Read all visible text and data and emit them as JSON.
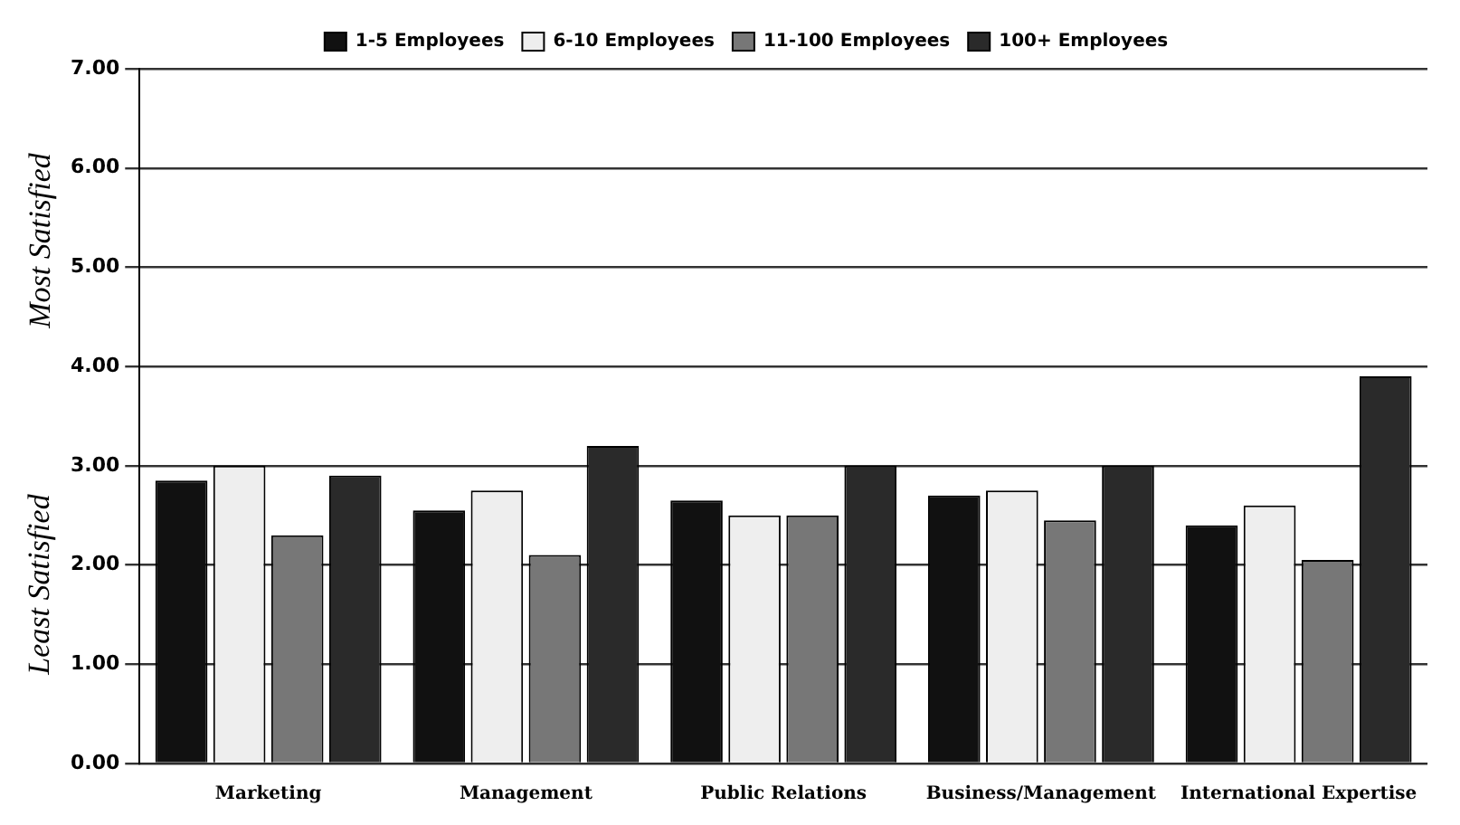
{
  "chart_data": {
    "type": "bar",
    "categories": [
      "Marketing",
      "Management",
      "Public Relations",
      "Business/Management",
      "International Expertise"
    ],
    "series": [
      {
        "name": "1-5 Employees",
        "color": "#111111",
        "values": [
          2.85,
          2.55,
          2.65,
          2.7,
          2.4
        ]
      },
      {
        "name": "6-10 Employees",
        "color": "#eeeeee",
        "values": [
          3.0,
          2.75,
          2.5,
          2.75,
          2.6
        ]
      },
      {
        "name": "11-100 Employees",
        "color": "#777777",
        "values": [
          2.3,
          2.1,
          2.5,
          2.45,
          2.05
        ]
      },
      {
        "name": "100+ Employees",
        "color": "#2a2a2a",
        "values": [
          2.9,
          3.2,
          3.0,
          3.0,
          3.9
        ]
      }
    ],
    "ylim": [
      0,
      7
    ],
    "yticks": [
      {
        "value": 0,
        "label": "0.00"
      },
      {
        "value": 1,
        "label": "1.00"
      },
      {
        "value": 2,
        "label": "2.00"
      },
      {
        "value": 3,
        "label": "3.00"
      },
      {
        "value": 4,
        "label": "4.00"
      },
      {
        "value": 5,
        "label": "5.00"
      },
      {
        "value": 6,
        "label": "6.00"
      },
      {
        "value": 7,
        "label": "7.00"
      }
    ],
    "annotations": [
      "Least Satisfied",
      "Most Satisfied"
    ],
    "grid": "y",
    "legend": "top"
  }
}
